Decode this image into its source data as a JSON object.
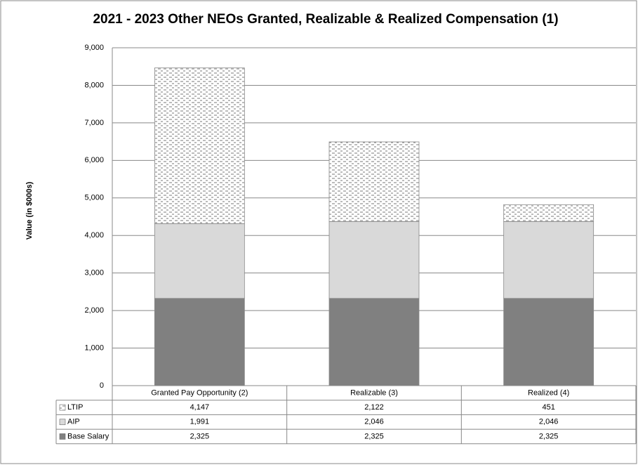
{
  "chart_data": {
    "type": "stacked_bar",
    "title": "2021 - 2023 Other NEOs Granted, Realizable & Realized Compensation (1)",
    "y_label": "Value  (in $000s)",
    "categories": [
      "Granted Pay Opportunity (2)",
      "Realizable (3)",
      "Realized (4)"
    ],
    "series": [
      {
        "name": "Base Salary",
        "color": "#808080",
        "values": [
          2325,
          2325,
          2325
        ],
        "value_labels": [
          "2,325",
          "2,325",
          "2,325"
        ]
      },
      {
        "name": "AIP",
        "color": "#d9d9d9",
        "values": [
          1991,
          2046,
          2046
        ],
        "value_labels": [
          "1,991",
          "2,046",
          "2,046"
        ]
      },
      {
        "name": "LTIP",
        "color": "#ffffff",
        "pattern": "dashes",
        "values": [
          4147,
          2122,
          451
        ],
        "value_labels": [
          "4,147",
          "2,122",
          "451"
        ]
      }
    ],
    "ylim": [
      0,
      9000
    ],
    "yticks": [
      0,
      {
        "value": 1000,
        "label": "1,000"
      },
      {
        "value": 2000,
        "label": "2,000"
      },
      {
        "value": 3000,
        "label": "3,000"
      },
      {
        "value": 4000,
        "label": "4,000"
      },
      {
        "value": 5000,
        "label": "5,000"
      },
      {
        "value": 6000,
        "label": "6,000"
      },
      {
        "value": 7000,
        "label": "7,000"
      },
      {
        "value": 8000,
        "label": "8,000"
      },
      {
        "value": 9000,
        "label": "9,000"
      }
    ],
    "grid": true,
    "data_table": true
  }
}
